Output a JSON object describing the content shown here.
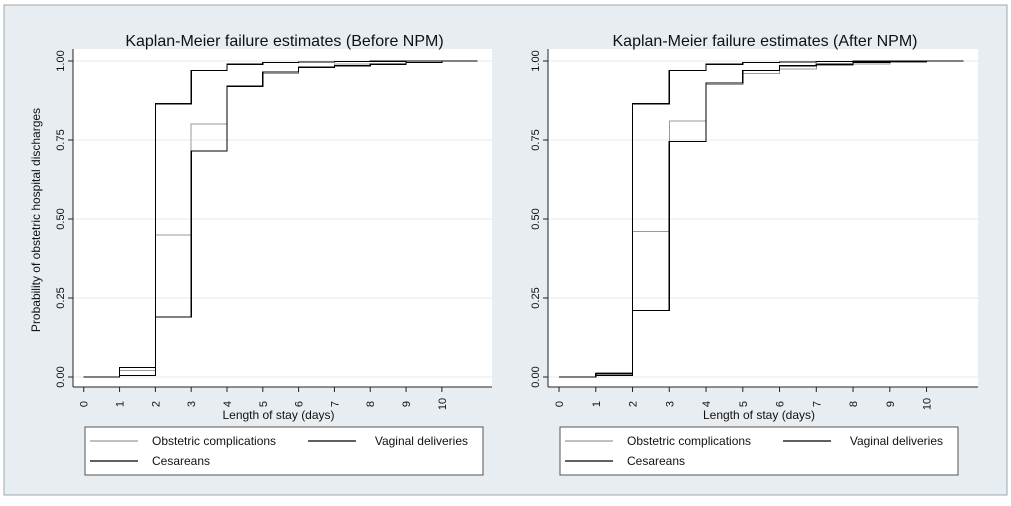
{
  "chart_data": [
    {
      "type": "line",
      "step": "post",
      "title": "Kaplan-Meier failure estimates (Before NPM)",
      "xlabel": "Length of stay (days)",
      "ylabel": "Probability of obstetric hospital discharges",
      "xlim": [
        -0.3,
        11.4
      ],
      "ylim": [
        0,
        1
      ],
      "xticks": [
        "0",
        "1",
        "2",
        "3",
        "4",
        "5",
        "6",
        "7",
        "8",
        "9",
        "10"
      ],
      "yticks": [
        "0.00",
        "0.25",
        "0.50",
        "0.75",
        "1.00"
      ],
      "grid": true,
      "legend": "bottom",
      "series": [
        {
          "name": "Obstetric complications",
          "color": "#9a9a9a",
          "x": [
            0,
            1,
            2,
            3,
            4,
            5,
            6,
            7,
            8,
            9,
            10,
            11
          ],
          "y": [
            0,
            0.02,
            0.45,
            0.8,
            0.92,
            0.96,
            0.98,
            0.99,
            0.99,
            0.995,
            1,
            1
          ]
        },
        {
          "name": "Vaginal deliveries",
          "color": "#000000",
          "x": [
            0,
            1,
            2,
            3,
            4,
            5,
            6,
            7,
            8,
            9,
            10,
            11
          ],
          "y": [
            0,
            0.03,
            0.865,
            0.97,
            0.99,
            0.995,
            0.997,
            0.998,
            0.999,
            1,
            1,
            1
          ]
        },
        {
          "name": "Cesareans",
          "color": "#000000",
          "x": [
            0,
            1,
            2,
            3,
            4,
            5,
            6,
            7,
            8,
            9,
            10,
            11
          ],
          "y": [
            0,
            0.005,
            0.19,
            0.715,
            0.92,
            0.965,
            0.98,
            0.985,
            0.99,
            0.995,
            1,
            1
          ]
        }
      ]
    },
    {
      "type": "line",
      "step": "post",
      "title": "Kaplan-Meier failure estimates (After NPM)",
      "xlabel": "Length of stay (days)",
      "ylabel": "",
      "xlim": [
        -0.3,
        11.4
      ],
      "ylim": [
        0,
        1
      ],
      "xticks": [
        "0",
        "1",
        "2",
        "3",
        "4",
        "5",
        "6",
        "7",
        "8",
        "9",
        "10"
      ],
      "yticks": [
        "0.00",
        "0.25",
        "0.50",
        "0.75",
        "1.00"
      ],
      "grid": true,
      "legend": "bottom",
      "series": [
        {
          "name": "Obstetric complications",
          "color": "#9a9a9a",
          "x": [
            0,
            1,
            2,
            3,
            4,
            5,
            6,
            7,
            8,
            9,
            10,
            11
          ],
          "y": [
            0,
            0.015,
            0.46,
            0.81,
            0.925,
            0.96,
            0.975,
            0.985,
            0.99,
            0.995,
            1,
            1
          ]
        },
        {
          "name": "Vaginal deliveries",
          "color": "#000000",
          "x": [
            0,
            1,
            2,
            3,
            4,
            5,
            6,
            7,
            8,
            9,
            10,
            11
          ],
          "y": [
            0,
            0.01,
            0.865,
            0.97,
            0.99,
            0.995,
            0.997,
            0.998,
            0.999,
            1,
            1,
            1
          ]
        },
        {
          "name": "Cesareans",
          "color": "#000000",
          "x": [
            0,
            1,
            2,
            3,
            4,
            5,
            6,
            7,
            8,
            9,
            10,
            11
          ],
          "y": [
            0,
            0.005,
            0.21,
            0.745,
            0.93,
            0.97,
            0.985,
            0.99,
            0.995,
            0.998,
            1,
            1
          ]
        }
      ]
    }
  ],
  "style": {
    "outer_background": "#e8edf1",
    "panel_border": "#9aa9b4",
    "plot_background": "#ffffff",
    "grid_color": "#e6eaee",
    "axis_color": "#222222"
  }
}
